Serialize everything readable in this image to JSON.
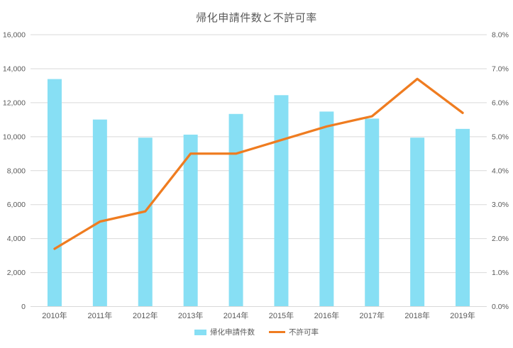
{
  "chart_data": {
    "type": "combo",
    "subtype": [
      "bar",
      "line"
    ],
    "title": "帰化申請件数と不許可率",
    "categories": [
      "2010年",
      "2011年",
      "2012年",
      "2013年",
      "2014年",
      "2015年",
      "2016年",
      "2017年",
      "2018年",
      "2019年"
    ],
    "series": [
      {
        "name": "帰化申請件数",
        "type": "bar",
        "axis": "left",
        "color": "#87DFF4",
        "values": [
          13391,
          11008,
          9940,
          10119,
          11337,
          12442,
          11477,
          11063,
          9942,
          10457
        ]
      },
      {
        "name": "不許可率",
        "type": "line",
        "axis": "right",
        "color": "#EF7C20",
        "values": [
          1.7,
          2.5,
          2.8,
          4.5,
          4.5,
          4.9,
          5.3,
          5.6,
          6.7,
          5.7
        ]
      }
    ],
    "axes": {
      "left": {
        "min": 0,
        "max": 16000,
        "step": 2000,
        "tick_labels": [
          "0",
          "2,000",
          "4,000",
          "6,000",
          "8,000",
          "10,000",
          "12,000",
          "14,000",
          "16,000"
        ]
      },
      "right": {
        "min": 0,
        "max": 8,
        "step": 1,
        "tick_labels": [
          "0.0%",
          "1.0%",
          "2.0%",
          "3.0%",
          "4.0%",
          "5.0%",
          "6.0%",
          "7.0%",
          "8.0%"
        ]
      }
    },
    "grid": "on",
    "legend_position": "bottom",
    "colors": {
      "grid": "#D9D9D9",
      "text": "#595959",
      "title": "#595959",
      "background": "#FFFFFF"
    }
  }
}
